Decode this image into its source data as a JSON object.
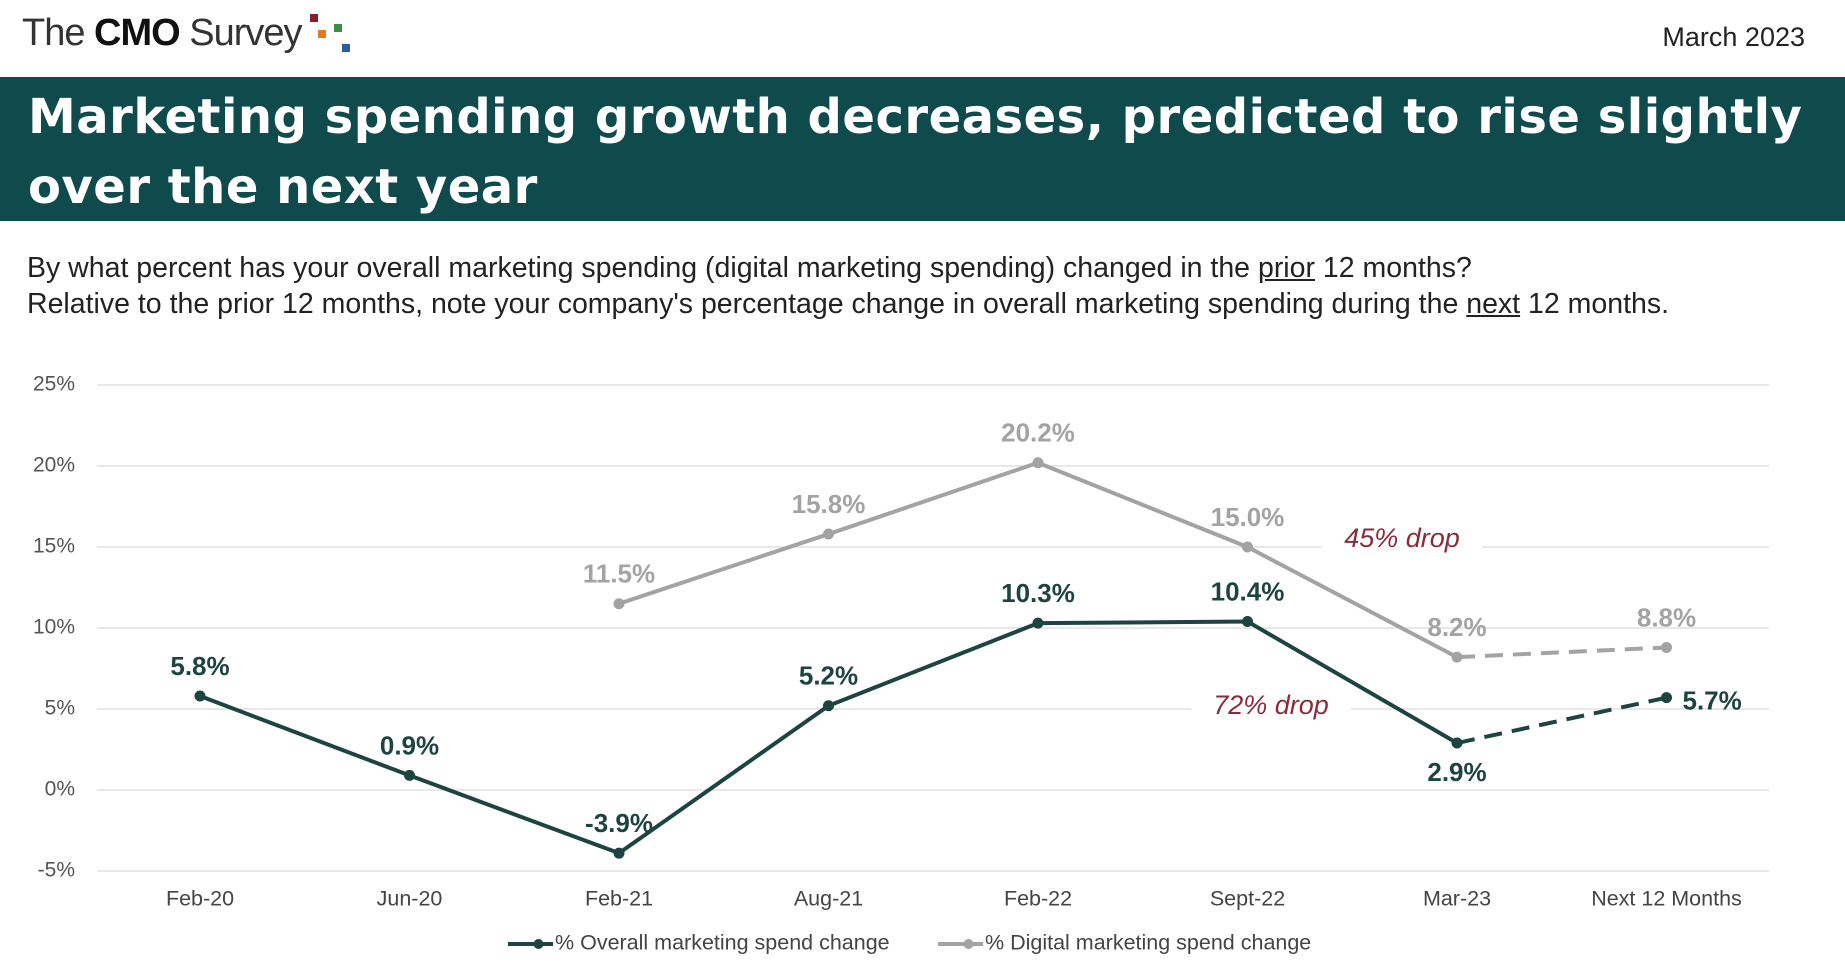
{
  "header": {
    "brand": [
      "The ",
      "CMO",
      " Survey"
    ],
    "date": "March 2023",
    "title": [
      "Marketing spending growth decreases, predicted to rise slightly",
      "over the next year"
    ]
  },
  "questions": [
    [
      "By what percent has your overall marketing spending (digital marketing spending) changed in the ",
      "prior",
      " 12 months?"
    ],
    [
      "Relative to the prior 12 months, note your company's percentage change in overall marketing spending during the ",
      "next",
      " 12 months."
    ]
  ],
  "chart_data": {
    "type": "line",
    "categories": [
      "Feb-20",
      "Jun-20",
      "Feb-21",
      "Aug-21",
      "Feb-22",
      "Sept-22",
      "Mar-23",
      "Next 12 Months"
    ],
    "series": [
      {
        "name": "% Overall marketing spend change",
        "color": "#1d4440",
        "values": [
          5.8,
          0.9,
          -3.9,
          5.2,
          10.3,
          10.4,
          2.9,
          5.7
        ],
        "value_labels": [
          "5.8%",
          "0.9%",
          "-3.9%",
          "5.2%",
          "10.3%",
          "10.4%",
          "2.9%",
          "5.7%"
        ]
      },
      {
        "name": "% Digital marketing spend change",
        "color": "#a3a3a3",
        "values": [
          null,
          null,
          11.5,
          15.8,
          20.2,
          15.0,
          8.2,
          8.8
        ],
        "value_labels": [
          null,
          null,
          "11.5%",
          "15.8%",
          "20.2%",
          "15.0%",
          "8.2%",
          "8.8%"
        ]
      }
    ],
    "dashed_last_segment": true,
    "ylim": [
      -5,
      25
    ],
    "yticks": [
      {
        "value": -5,
        "label": "-5%"
      },
      {
        "value": 0,
        "label": "0%"
      },
      {
        "value": 5,
        "label": "5%"
      },
      {
        "value": 10,
        "label": "10%"
      },
      {
        "value": 15,
        "label": "15%"
      },
      {
        "value": 20,
        "label": "20%"
      },
      {
        "value": 25,
        "label": "25%"
      }
    ],
    "grid": true,
    "legend": "bottom",
    "annotations": [
      {
        "text": "45% drop",
        "color": "#8b2a3a"
      },
      {
        "text": "72% drop",
        "color": "#8b2a3a"
      }
    ]
  }
}
